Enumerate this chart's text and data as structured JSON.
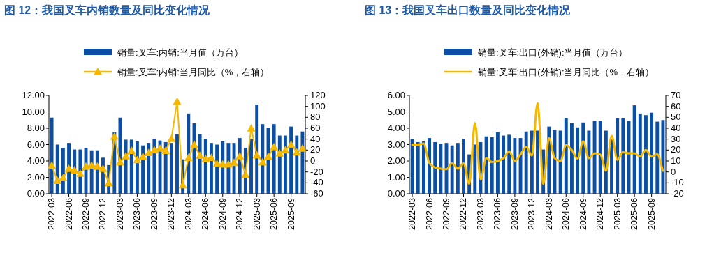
{
  "chart_data": [
    {
      "type": "bar",
      "title": "图 12：我国叉车内销数量及同比变化情况",
      "legend": "top",
      "grid": false,
      "categories": [
        "2022-03",
        null,
        null,
        "2022-06",
        null,
        null,
        "2022-09",
        null,
        null,
        "2022-12",
        null,
        null,
        "2023-03",
        null,
        null,
        "2023-06",
        null,
        null,
        "2023-09",
        null,
        null,
        "2023-12",
        null,
        null,
        "2024-03",
        null,
        null,
        "2024-06",
        null,
        null,
        "2024-09",
        null,
        null,
        "2024-12",
        null,
        null,
        "2025-03",
        null,
        null,
        "2025-06",
        null,
        null,
        "2025-09",
        null,
        null
      ],
      "ylim": [
        0,
        12
      ],
      "yticks": [
        {
          "value": 0,
          "label": "0.00"
        },
        {
          "value": 2,
          "label": "2.00"
        },
        {
          "value": 4,
          "label": "4.00"
        },
        {
          "value": 6,
          "label": "6.00"
        },
        {
          "value": 8,
          "label": "8.00"
        },
        {
          "value": 10,
          "label": "10.00"
        },
        {
          "value": 12,
          "label": "12.00"
        }
      ],
      "y2lim": [
        -60,
        120
      ],
      "y2ticks": [
        -60,
        -40,
        -20,
        0,
        20,
        40,
        60,
        80,
        100,
        120
      ],
      "series": [
        {
          "name": "销量:叉车:内销:当月值（万台）",
          "color": "#0b4ea2",
          "values": [
            9.3,
            6.0,
            5.6,
            6.2,
            5.4,
            5.4,
            5.6,
            5.3,
            5.3,
            4.4,
            3.5,
            7.5,
            9.3,
            6.6,
            6.6,
            6.4,
            5.9,
            6.2,
            6.7,
            6.5,
            6.3,
            6.2,
            7.3,
            4.2,
            9.8,
            8.6,
            7.3,
            6.7,
            6.2,
            6.0,
            6.4,
            6.2,
            6.2,
            6.8,
            5.6,
            6.7,
            10.9,
            8.5,
            8.0,
            8.5,
            7.1,
            7.1,
            8.2,
            7.1,
            7.6
          ]
        },
        {
          "name": "销量:叉车:内销:当月同比（%，右轴）",
          "type": "line",
          "axis": "y2",
          "marker": "triangle",
          "color": "#f5b800",
          "values": [
            -8,
            -36,
            -31,
            -14,
            -17,
            -23,
            -10,
            -8,
            -10,
            -14,
            -40,
            45,
            -2,
            9,
            19,
            2,
            8,
            15,
            20,
            23,
            19,
            41,
            109,
            -44,
            6,
            30,
            10,
            4,
            6,
            -5,
            -6,
            -6,
            -3,
            9,
            -25,
            60,
            11,
            -2,
            8,
            26,
            14,
            20,
            30,
            16,
            23
          ]
        }
      ]
    },
    {
      "type": "bar",
      "title": "图 13：我国叉车出口数量及同比变化情况",
      "legend": "top",
      "grid": false,
      "categories": [
        "2022-03",
        null,
        null,
        "2022-06",
        null,
        null,
        "2022-09",
        null,
        null,
        "2022-12",
        null,
        null,
        "2023-03",
        null,
        null,
        "2023-06",
        null,
        null,
        "2023-09",
        null,
        null,
        "2023-12",
        null,
        null,
        "2024-03",
        null,
        null,
        "2024-06",
        null,
        null,
        "2024-09",
        null,
        null,
        "2024-12",
        null,
        null,
        "2025-03",
        null,
        null,
        "2025-06",
        null,
        null,
        "2025-09",
        null,
        null
      ],
      "ylim": [
        0,
        6
      ],
      "yticks": [
        {
          "value": 0,
          "label": "0.00"
        },
        {
          "value": 1,
          "label": "1.00"
        },
        {
          "value": 2,
          "label": "2.00"
        },
        {
          "value": 3,
          "label": "3.00"
        },
        {
          "value": 4,
          "label": "4.00"
        },
        {
          "value": 5,
          "label": "5.00"
        },
        {
          "value": 6,
          "label": "6.00"
        }
      ],
      "y2lim": [
        -20,
        70
      ],
      "y2ticks": [
        -20,
        -10,
        0,
        10,
        20,
        30,
        40,
        50,
        60,
        70
      ],
      "series": [
        {
          "name": "销量:叉车:出口(外销):当月值（万台）",
          "color": "#0b4ea2",
          "values": [
            3.35,
            3.15,
            3.2,
            3.4,
            3.15,
            3.05,
            3.1,
            2.95,
            3.1,
            3.35,
            2.4,
            3.0,
            3.15,
            3.5,
            3.45,
            3.75,
            3.55,
            3.6,
            3.4,
            3.4,
            3.8,
            3.85,
            3.85,
            2.7,
            4.1,
            3.9,
            3.85,
            4.6,
            4.3,
            4.05,
            4.35,
            3.85,
            4.45,
            4.45,
            3.85,
            3.3,
            4.6,
            4.6,
            4.45,
            5.4,
            4.9,
            4.8,
            4.95,
            4.4,
            4.5
          ]
        },
        {
          "name": "销量:叉车:出口(外销):当月同比（%，右轴）",
          "type": "line",
          "axis": "y2",
          "marker": "none",
          "color": "#f5b800",
          "values": [
            25,
            25,
            26,
            8,
            4,
            3,
            2.5,
            8,
            3,
            8,
            -11,
            45,
            -7,
            12.5,
            9,
            10,
            12.5,
            19,
            10,
            16,
            23,
            15,
            63,
            -11,
            31,
            12.5,
            10,
            24.5,
            20,
            12,
            28,
            12.5,
            17,
            16,
            1,
            33,
            11,
            18,
            17,
            17,
            14,
            20,
            14,
            16,
            1
          ]
        }
      ]
    }
  ]
}
